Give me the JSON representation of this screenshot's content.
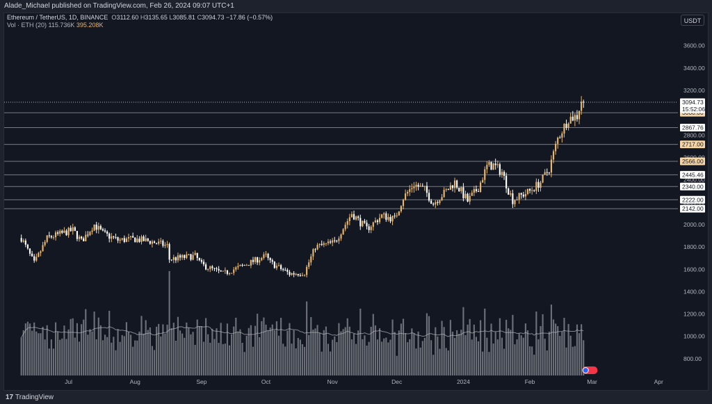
{
  "header": {
    "publisher_line": "Alade_Michael published on TradingView.com, Feb 26, 2024 09:07 UTC+1"
  },
  "legend": {
    "symbol": "Ethereum / TetherUS, 1D, BINANCE",
    "open_label": "O",
    "open": "3112.60",
    "high_label": "H",
    "high": "3135.65",
    "low_label": "L",
    "low": "3085.81",
    "close_label": "C",
    "close": "3094.73",
    "change": "−17.86 (−0.57%)",
    "volume_label": "Vol · ETH (20)",
    "volume": "115.736K",
    "volume_ma": "395.208K"
  },
  "currency_button": "USDT",
  "footer": {
    "logo": "17",
    "brand": "TradingView"
  },
  "colors": {
    "background": "#131722",
    "up_candle": "#e9b66b",
    "down_candle": "#ffffff",
    "volume_bar": "#8a8d95",
    "volume_ma_line": "#b2b5be",
    "level_line": "#787b86",
    "last_price_line": "#b2b5be",
    "tag_fill_white": "#ffffff",
    "tag_fill_orange": "#f5d5a5"
  },
  "chart_data": {
    "type": "candlestick",
    "y_axis": {
      "ticks": [
        800,
        1000,
        1200,
        1400,
        1600,
        1800,
        2000,
        2200,
        2400,
        2600,
        2800,
        3000,
        3200,
        3400,
        3600
      ],
      "tick_labels": [
        "800.00",
        "1000.00",
        "1200.00",
        "1400.00",
        "1600.00",
        "1800.00",
        "2000.00",
        "2200.00",
        "2400.00",
        "2600.00",
        "2800.00",
        "3000.00",
        "3200.00",
        "3400.00",
        "3600.00"
      ],
      "range": [
        650,
        3760
      ]
    },
    "x_axis": {
      "labels": [
        "Jul",
        "Aug",
        "Sep",
        "Oct",
        "Nov",
        "Dec",
        "2024",
        "Feb",
        "Mar",
        "Apr"
      ],
      "label_dates": [
        "2023-07-01",
        "2023-08-01",
        "2023-09-01",
        "2023-10-01",
        "2023-11-01",
        "2023-12-01",
        "2024-01-01",
        "2024-02-01",
        "2024-03-01",
        "2024-04-01"
      ],
      "range": [
        "2023-06-01",
        "2024-04-10"
      ]
    },
    "horizontal_levels": [
      {
        "value": 3000.0,
        "label": "3000.00",
        "style": "orange"
      },
      {
        "value": 2867.76,
        "label": "2867.76",
        "style": "white"
      },
      {
        "value": 2717.0,
        "label": "2717.00",
        "style": "orange"
      },
      {
        "value": 2566.0,
        "label": "2566.00",
        "style": "orange"
      },
      {
        "value": 2445.46,
        "label": "2445.46",
        "style": "white"
      },
      {
        "value": 2340.0,
        "label": "2340.00",
        "style": "white"
      },
      {
        "value": 2222.0,
        "label": "2222.00",
        "style": "white"
      },
      {
        "value": 2142.0,
        "label": "2142.00",
        "style": "white"
      }
    ],
    "last_price": {
      "value": 3094.73,
      "label": "3094.73",
      "countdown": "15:52:06"
    },
    "price_anchors": [
      {
        "date": "2023-06-09",
        "close": 1880
      },
      {
        "date": "2023-06-15",
        "close": 1650
      },
      {
        "date": "2023-06-21",
        "close": 1880
      },
      {
        "date": "2023-07-03",
        "close": 1950
      },
      {
        "date": "2023-07-07",
        "close": 1850
      },
      {
        "date": "2023-07-13",
        "close": 2000
      },
      {
        "date": "2023-07-17",
        "close": 1920
      },
      {
        "date": "2023-07-24",
        "close": 1860
      },
      {
        "date": "2023-08-01",
        "close": 1870
      },
      {
        "date": "2023-08-08",
        "close": 1850
      },
      {
        "date": "2023-08-16",
        "close": 1810
      },
      {
        "date": "2023-08-17",
        "close": 1690
      },
      {
        "date": "2023-08-29",
        "close": 1720
      },
      {
        "date": "2023-09-01",
        "close": 1640
      },
      {
        "date": "2023-09-11",
        "close": 1560
      },
      {
        "date": "2023-09-20",
        "close": 1630
      },
      {
        "date": "2023-10-01",
        "close": 1720
      },
      {
        "date": "2023-10-03",
        "close": 1660
      },
      {
        "date": "2023-10-12",
        "close": 1560
      },
      {
        "date": "2023-10-19",
        "close": 1570
      },
      {
        "date": "2023-10-24",
        "close": 1800
      },
      {
        "date": "2023-11-02",
        "close": 1840
      },
      {
        "date": "2023-11-10",
        "close": 2100
      },
      {
        "date": "2023-11-17",
        "close": 1960
      },
      {
        "date": "2023-11-24",
        "close": 2080
      },
      {
        "date": "2023-11-30",
        "close": 2050
      },
      {
        "date": "2023-12-04",
        "close": 2240
      },
      {
        "date": "2023-12-09",
        "close": 2360
      },
      {
        "date": "2023-12-14",
        "close": 2310
      },
      {
        "date": "2023-12-18",
        "close": 2190
      },
      {
        "date": "2023-12-24",
        "close": 2300
      },
      {
        "date": "2023-12-28",
        "close": 2380
      },
      {
        "date": "2024-01-03",
        "close": 2210
      },
      {
        "date": "2024-01-08",
        "close": 2330
      },
      {
        "date": "2024-01-12",
        "close": 2520
      },
      {
        "date": "2024-01-15",
        "close": 2530
      },
      {
        "date": "2024-01-19",
        "close": 2470
      },
      {
        "date": "2024-01-22",
        "close": 2310
      },
      {
        "date": "2024-01-24",
        "close": 2220
      },
      {
        "date": "2024-02-01",
        "close": 2300
      },
      {
        "date": "2024-02-06",
        "close": 2380
      },
      {
        "date": "2024-02-10",
        "close": 2500
      },
      {
        "date": "2024-02-14",
        "close": 2770
      },
      {
        "date": "2024-02-19",
        "close": 2950
      },
      {
        "date": "2024-02-23",
        "close": 2970
      },
      {
        "date": "2024-02-25",
        "close": 3112
      },
      {
        "date": "2024-02-26",
        "close": 3094
      }
    ]
  }
}
